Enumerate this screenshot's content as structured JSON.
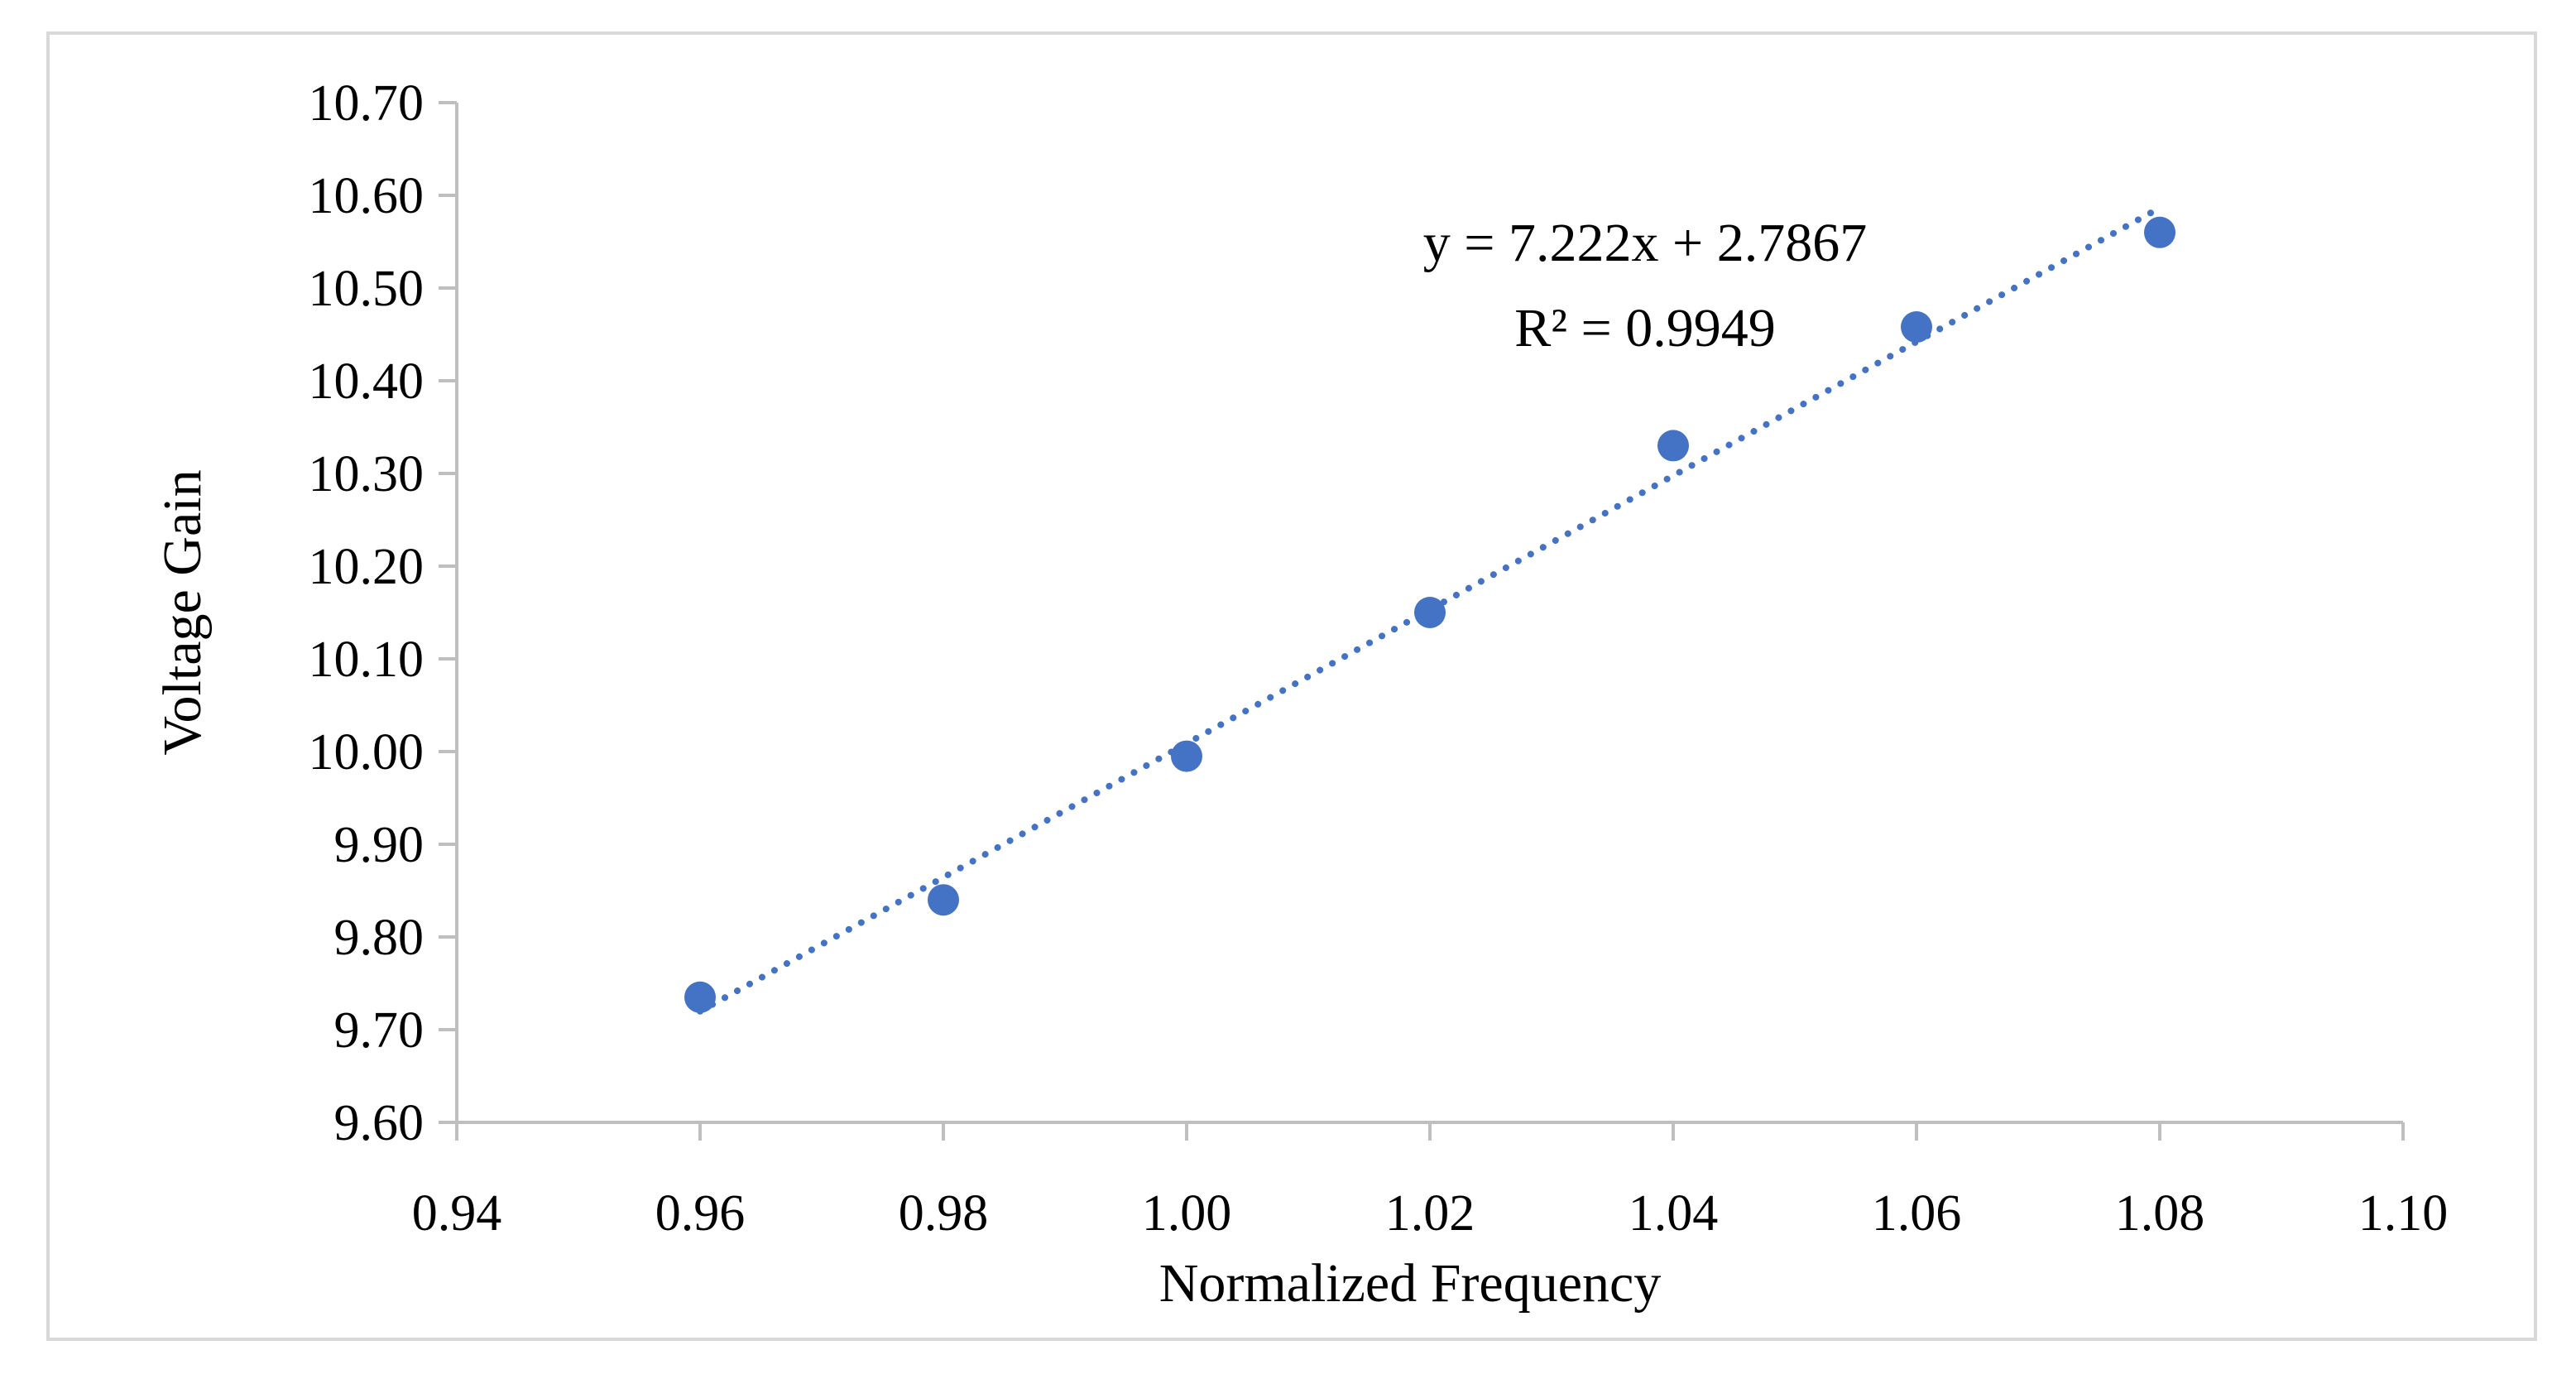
{
  "chart_data": {
    "type": "scatter",
    "title": "",
    "xlabel": "Normalized Frequency",
    "ylabel": "Voltage Gain",
    "xlim": [
      0.94,
      1.1
    ],
    "ylim": [
      9.6,
      10.7
    ],
    "x_ticks": [
      "0.94",
      "0.96",
      "0.98",
      "1.00",
      "1.02",
      "1.04",
      "1.06",
      "1.08",
      "1.10"
    ],
    "y_ticks": [
      "9.60",
      "9.70",
      "9.80",
      "9.90",
      "10.00",
      "10.10",
      "10.20",
      "10.30",
      "10.40",
      "10.50",
      "10.60",
      "10.70"
    ],
    "grid": false,
    "legend": "none",
    "series": [
      {
        "name": "Voltage Gain",
        "color": "#4472C4",
        "x": [
          0.96,
          0.98,
          1.0,
          1.02,
          1.04,
          1.06,
          1.08
        ],
        "y": [
          9.735,
          9.84,
          9.995,
          10.15,
          10.33,
          10.458,
          10.56
        ]
      }
    ],
    "trendline": {
      "type": "linear",
      "slope": 7.222,
      "intercept": 2.7867,
      "x_range": [
        0.96,
        1.08
      ],
      "color": "#4472C4",
      "style": "dotted"
    },
    "annotations": {
      "equation": "y = 7.222x + 2.7867",
      "r_squared": "R² = 0.9949"
    }
  }
}
